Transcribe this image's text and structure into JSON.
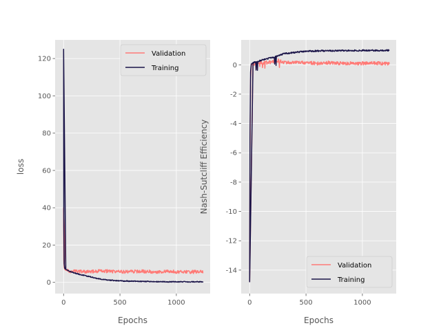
{
  "chart_data": [
    {
      "type": "line",
      "xlabel": "Epochs",
      "ylabel": "loss",
      "xlim": [
        -75,
        1300
      ],
      "ylim": [
        -6,
        130
      ],
      "xticks": [
        0,
        500,
        1000
      ],
      "yticks": [
        0,
        20,
        40,
        60,
        80,
        100,
        120
      ],
      "grid": true,
      "legend_position": "top-right",
      "series": [
        {
          "name": "Validation",
          "color": "#ff7a76",
          "x": [
            0,
            2,
            5,
            10,
            20,
            50,
            100,
            150,
            200,
            250,
            300,
            400,
            500,
            600,
            700,
            800,
            900,
            1000,
            1100,
            1240
          ],
          "y": [
            40,
            12,
            8,
            7,
            6.5,
            6,
            6,
            5.8,
            5.6,
            5.8,
            6,
            6,
            5.7,
            5.8,
            5.9,
            5.7,
            5.8,
            5.7,
            5.6,
            5.6
          ]
        },
        {
          "name": "Training",
          "color": "#1a1448",
          "x": [
            0,
            2,
            5,
            10,
            20,
            50,
            100,
            150,
            200,
            250,
            300,
            400,
            500,
            600,
            700,
            800,
            900,
            1000,
            1100,
            1240
          ],
          "y": [
            125,
            30,
            10,
            7.5,
            7,
            6,
            5,
            4.2,
            3.5,
            2.8,
            2,
            1.2,
            0.8,
            0.6,
            0.5,
            0.4,
            0.35,
            0.3,
            0.3,
            0.3
          ]
        }
      ]
    },
    {
      "type": "line",
      "xlabel": "Epochs",
      "ylabel": "Nash-Sutcliff Efficiency",
      "xlim": [
        -75,
        1300
      ],
      "ylim": [
        -15.6,
        1.7
      ],
      "xticks": [
        0,
        500,
        1000
      ],
      "yticks": [
        -14,
        -12,
        -10,
        -8,
        -6,
        -4,
        -2,
        0
      ],
      "grid": true,
      "legend_position": "bottom-right",
      "series": [
        {
          "name": "Validation",
          "color": "#ff7a76",
          "x": [
            0,
            3,
            8,
            15,
            30,
            60,
            100,
            150,
            200,
            250,
            300,
            400,
            500,
            600,
            700,
            800,
            900,
            1000,
            1100,
            1240
          ],
          "y": [
            -14.8,
            -6,
            -1,
            0,
            0.05,
            0.1,
            0.15,
            0.15,
            0.2,
            0.3,
            0.15,
            0.15,
            0.15,
            0.1,
            0.15,
            0.1,
            0.1,
            0.1,
            0.1,
            0.1
          ]
        },
        {
          "name": "Training",
          "color": "#1a1448",
          "x": [
            0,
            3,
            8,
            15,
            30,
            60,
            100,
            150,
            200,
            250,
            300,
            400,
            500,
            600,
            700,
            800,
            900,
            1000,
            1100,
            1240
          ],
          "y": [
            -14.8,
            -5,
            -0.5,
            0.05,
            0.15,
            0.2,
            0.3,
            0.4,
            0.5,
            0.6,
            0.75,
            0.85,
            0.92,
            0.95,
            0.96,
            0.97,
            0.97,
            0.98,
            0.98,
            0.98
          ]
        }
      ]
    }
  ]
}
